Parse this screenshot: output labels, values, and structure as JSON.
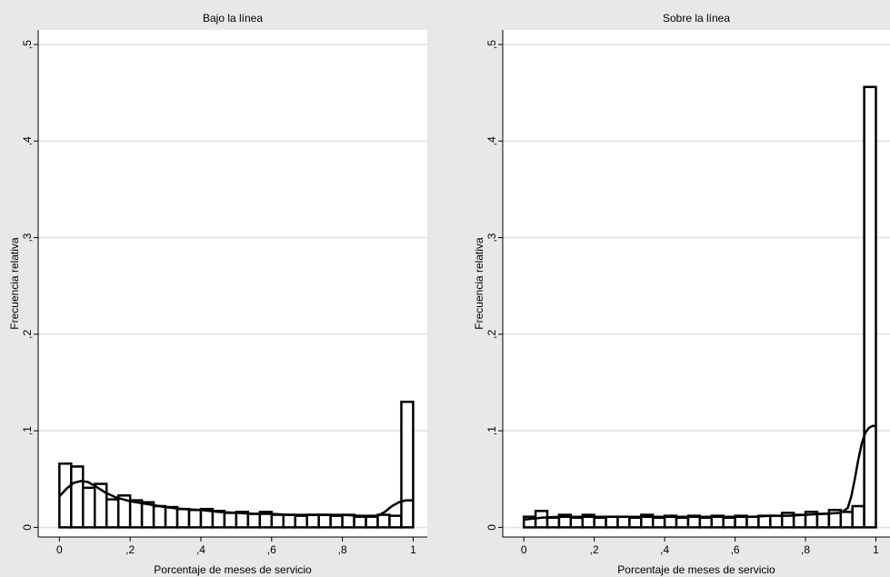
{
  "chart_data": [
    {
      "type": "bar",
      "title": "Bajo la línea",
      "xlabel": "Porcentaje de meses de servicio",
      "ylabel": "Frecuencia relativa",
      "xlim": [
        -0.06,
        1.04
      ],
      "ylim": [
        -0.01,
        0.515
      ],
      "x_ticks": [
        {
          "value": 0,
          "label": "0"
        },
        {
          "value": 0.2,
          "label": ",2"
        },
        {
          "value": 0.4,
          "label": ",4"
        },
        {
          "value": 0.6,
          "label": ",6"
        },
        {
          "value": 0.8,
          "label": ",8"
        },
        {
          "value": 1,
          "label": "1"
        }
      ],
      "y_ticks": [
        {
          "value": 0,
          "label": "0"
        },
        {
          "value": 0.1,
          "label": ",1"
        },
        {
          "value": 0.2,
          "label": ",2"
        },
        {
          "value": 0.3,
          "label": ",3"
        },
        {
          "value": 0.4,
          "label": ",4"
        },
        {
          "value": 0.5,
          "label": ",5"
        }
      ],
      "grid": true,
      "bin_width": 0.0333,
      "bin_starts": [
        0,
        0.0333,
        0.0667,
        0.1,
        0.1333,
        0.1667,
        0.2,
        0.2333,
        0.2667,
        0.3,
        0.3333,
        0.3667,
        0.4,
        0.4333,
        0.4667,
        0.5,
        0.5333,
        0.5667,
        0.6,
        0.6333,
        0.6667,
        0.7,
        0.7333,
        0.7667,
        0.8,
        0.8333,
        0.8667,
        0.9,
        0.9333,
        0.9667
      ],
      "values": [
        0.066,
        0.063,
        0.041,
        0.045,
        0.029,
        0.033,
        0.028,
        0.026,
        0.022,
        0.021,
        0.019,
        0.018,
        0.019,
        0.017,
        0.015,
        0.016,
        0.014,
        0.016,
        0.013,
        0.013,
        0.012,
        0.013,
        0.013,
        0.012,
        0.013,
        0.011,
        0.011,
        0.013,
        0.012,
        0.13
      ],
      "density_curve": {
        "x": [
          0,
          0.02,
          0.04,
          0.06,
          0.08,
          0.1,
          0.13,
          0.16,
          0.2,
          0.25,
          0.3,
          0.35,
          0.4,
          0.45,
          0.5,
          0.55,
          0.6,
          0.65,
          0.7,
          0.75,
          0.8,
          0.85,
          0.9,
          0.92,
          0.94,
          0.96,
          0.98,
          1
        ],
        "y": [
          0.032,
          0.04,
          0.046,
          0.048,
          0.047,
          0.043,
          0.036,
          0.031,
          0.027,
          0.024,
          0.021,
          0.019,
          0.018,
          0.016,
          0.015,
          0.014,
          0.014,
          0.013,
          0.013,
          0.013,
          0.013,
          0.012,
          0.012,
          0.016,
          0.022,
          0.026,
          0.028,
          0.028
        ]
      }
    },
    {
      "type": "bar",
      "title": "Sobre la línea",
      "xlabel": "Porcentaje de meses de servicio",
      "ylabel": "Frecuencia relativa",
      "xlim": [
        -0.06,
        1.04
      ],
      "ylim": [
        -0.01,
        0.515
      ],
      "x_ticks": [
        {
          "value": 0,
          "label": "0"
        },
        {
          "value": 0.2,
          "label": ",2"
        },
        {
          "value": 0.4,
          "label": ",4"
        },
        {
          "value": 0.6,
          "label": ",6"
        },
        {
          "value": 0.8,
          "label": ",8"
        },
        {
          "value": 1,
          "label": "1"
        }
      ],
      "y_ticks": [
        {
          "value": 0,
          "label": "0"
        },
        {
          "value": 0.1,
          "label": ",1"
        },
        {
          "value": 0.2,
          "label": ",2"
        },
        {
          "value": 0.3,
          "label": ",3"
        },
        {
          "value": 0.4,
          "label": ",4"
        },
        {
          "value": 0.5,
          "label": ",5"
        }
      ],
      "grid": true,
      "bin_width": 0.0333,
      "bin_starts": [
        0,
        0.0333,
        0.0667,
        0.1,
        0.1333,
        0.1667,
        0.2,
        0.2333,
        0.2667,
        0.3,
        0.3333,
        0.3667,
        0.4,
        0.4333,
        0.4667,
        0.5,
        0.5333,
        0.5667,
        0.6,
        0.6333,
        0.6667,
        0.7,
        0.7333,
        0.7667,
        0.8,
        0.8333,
        0.8667,
        0.9,
        0.9333,
        0.9667
      ],
      "values": [
        0.011,
        0.017,
        0.01,
        0.013,
        0.01,
        0.013,
        0.01,
        0.011,
        0.011,
        0.01,
        0.013,
        0.01,
        0.012,
        0.01,
        0.012,
        0.01,
        0.012,
        0.01,
        0.012,
        0.011,
        0.012,
        0.012,
        0.015,
        0.013,
        0.016,
        0.014,
        0.018,
        0.016,
        0.022,
        0.456
      ],
      "density_curve": {
        "x": [
          0,
          0.05,
          0.1,
          0.15,
          0.2,
          0.25,
          0.3,
          0.35,
          0.4,
          0.45,
          0.5,
          0.55,
          0.6,
          0.65,
          0.7,
          0.75,
          0.8,
          0.85,
          0.9,
          0.92,
          0.93,
          0.94,
          0.95,
          0.96,
          0.97,
          0.98,
          0.99,
          1
        ],
        "y": [
          0.008,
          0.01,
          0.011,
          0.011,
          0.011,
          0.011,
          0.011,
          0.011,
          0.011,
          0.011,
          0.011,
          0.011,
          0.011,
          0.011,
          0.012,
          0.012,
          0.013,
          0.014,
          0.015,
          0.02,
          0.032,
          0.05,
          0.07,
          0.087,
          0.098,
          0.103,
          0.105,
          0.105
        ]
      }
    }
  ]
}
